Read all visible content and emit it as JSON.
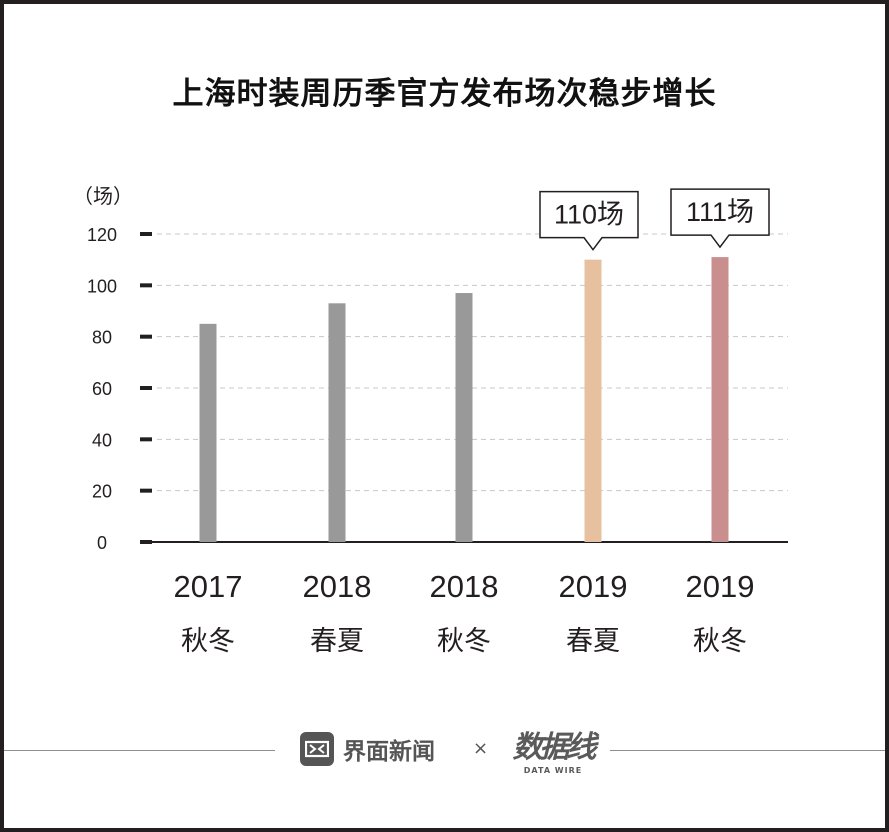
{
  "title": "上海时装周历季官方发布场次稳步增长",
  "chart_data": {
    "type": "bar",
    "ylabel": "（场）",
    "ylim": [
      0,
      120
    ],
    "yticks": [
      "0",
      "20",
      "40",
      "60",
      "80",
      "100",
      "120"
    ],
    "categories": [
      {
        "year": "2017",
        "season": "秋冬"
      },
      {
        "year": "2018",
        "season": "春夏"
      },
      {
        "year": "2018",
        "season": "秋冬"
      },
      {
        "year": "2019",
        "season": "春夏"
      },
      {
        "year": "2019",
        "season": "秋冬"
      }
    ],
    "values": [
      85,
      93,
      97,
      110,
      111
    ],
    "colors": [
      "#999999",
      "#999999",
      "#999999",
      "#e6c09f",
      "#c98f8f"
    ],
    "annotations": [
      {
        "index": 3,
        "text": "110场"
      },
      {
        "index": 4,
        "text": "111场"
      }
    ],
    "grid": true
  },
  "footer": {
    "brand": "界面新闻",
    "separator": "×",
    "partner_logo": "数据线",
    "partner_sub": "DATA WIRE"
  }
}
